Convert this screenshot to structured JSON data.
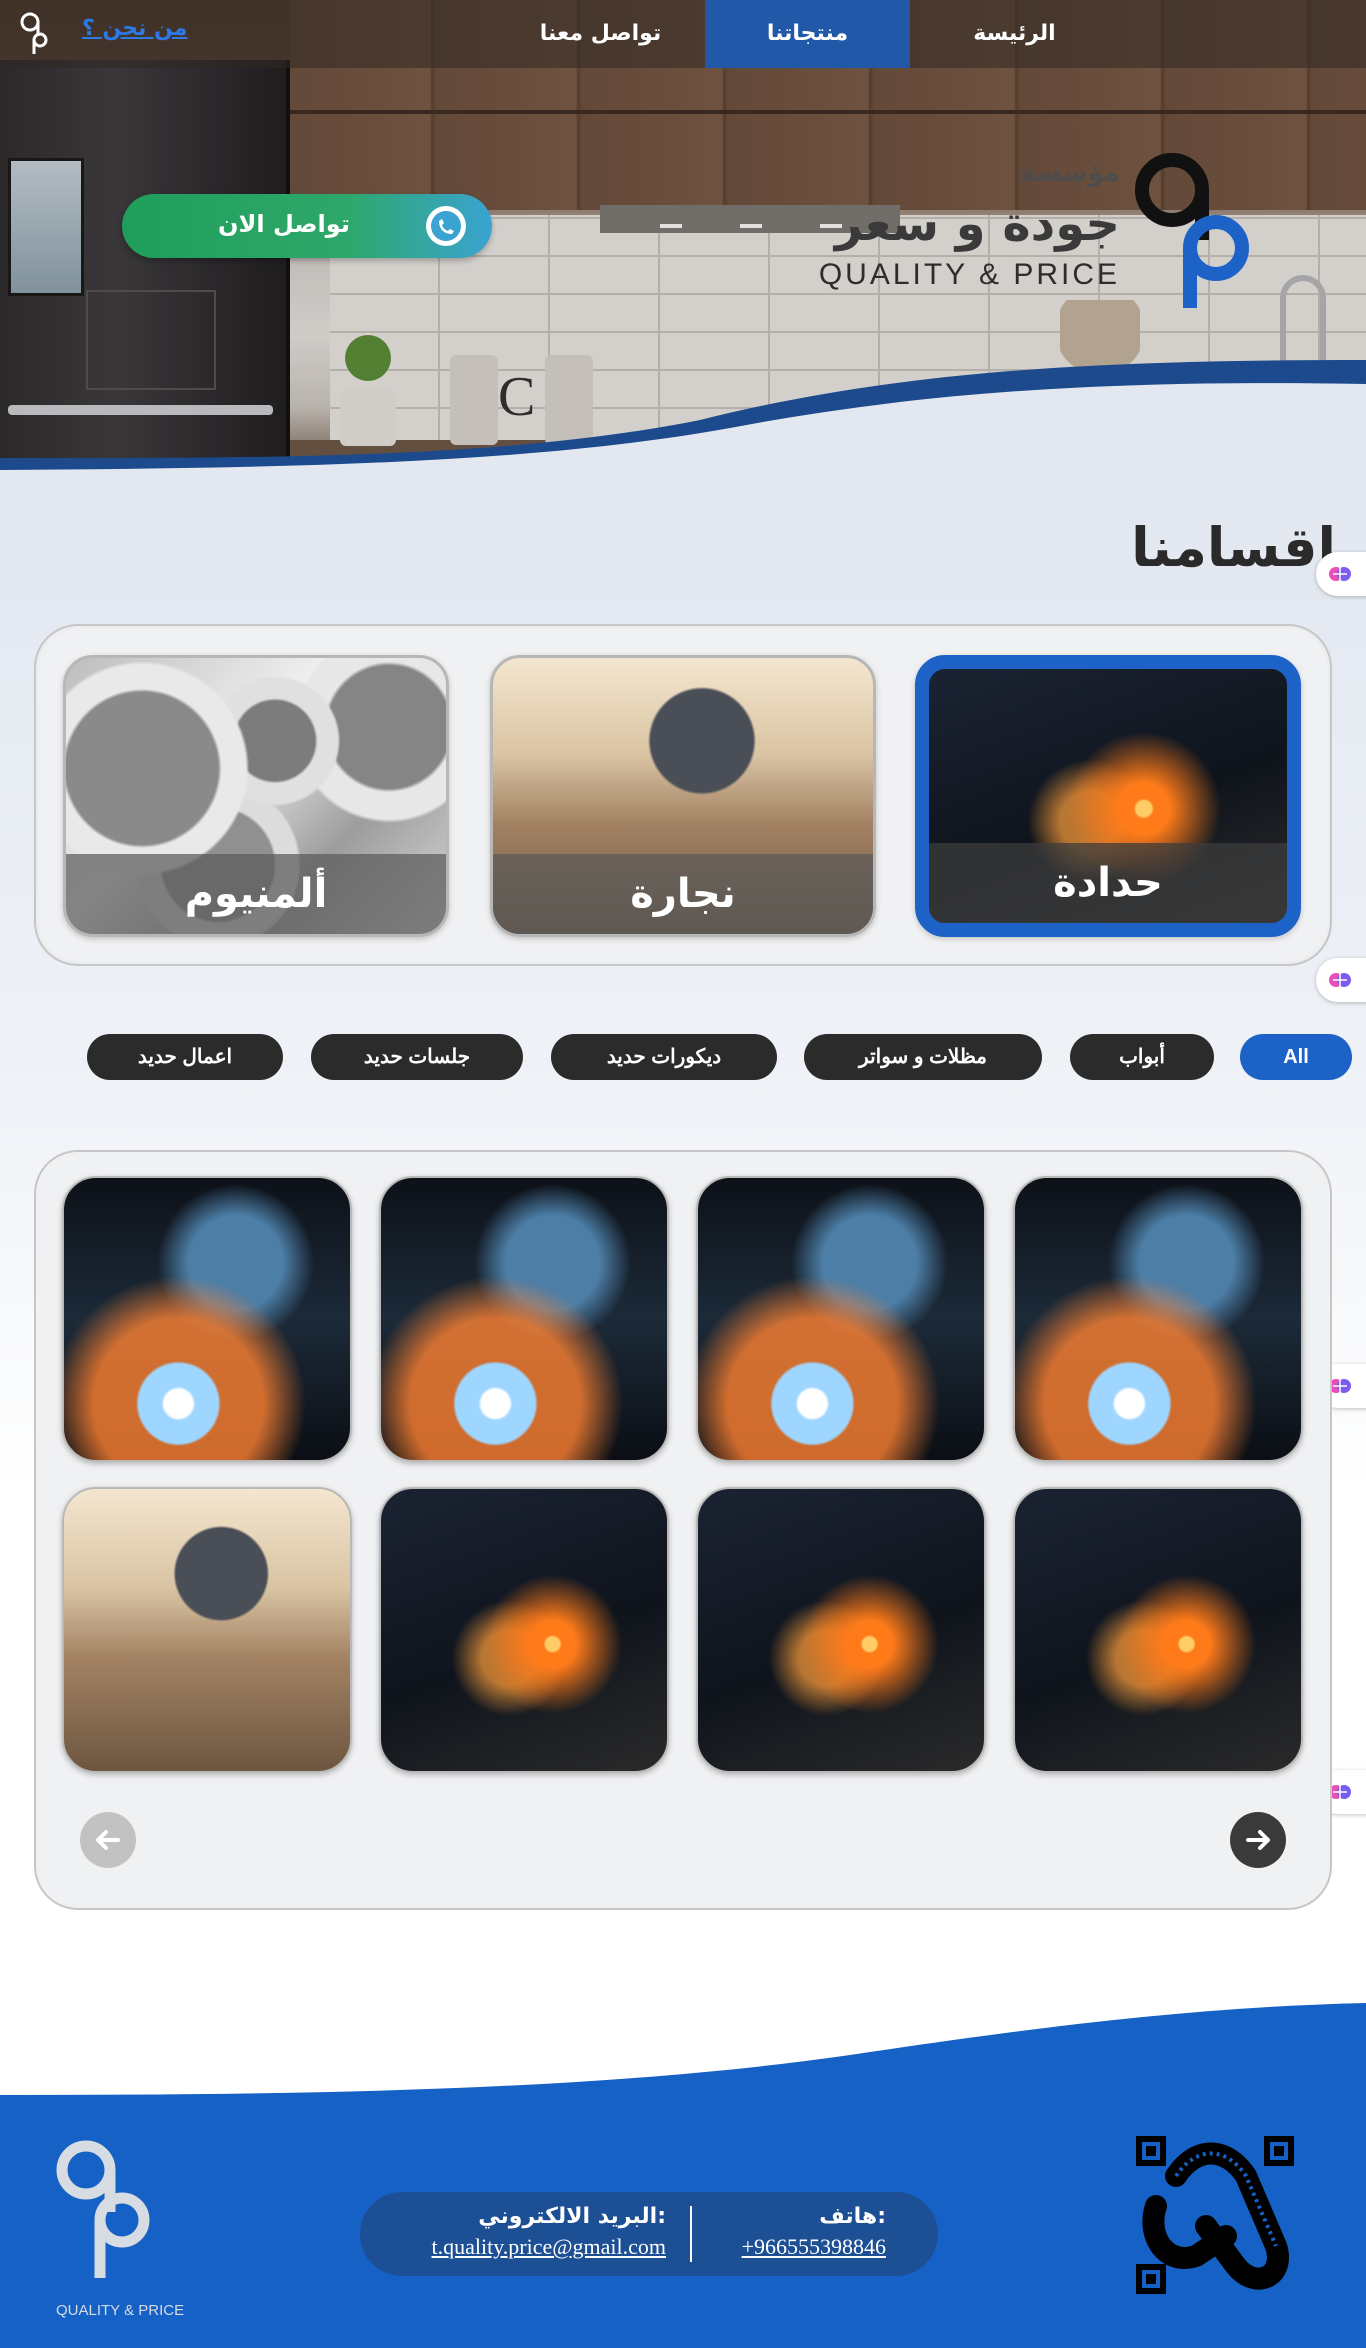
{
  "nav": {
    "home": "الرئيسة",
    "products": "منتجاتنا",
    "contact": "تواصل معنا",
    "about": "من نحن ؟"
  },
  "brand": {
    "small": "مؤسسة",
    "big": "جودة و سعر",
    "en": "QUALITY & PRICE"
  },
  "cta": {
    "label": "تواصل الان",
    "icon": "whatsapp-icon"
  },
  "sections": {
    "title": "اقسامنا"
  },
  "categories": [
    {
      "label": "حدادة",
      "active": true
    },
    {
      "label": "نجارة",
      "active": false
    },
    {
      "label": "ألمنيوم",
      "active": false
    }
  ],
  "filters": [
    {
      "label": "All",
      "active": true
    },
    {
      "label": "أبواب",
      "active": false
    },
    {
      "label": "مظلات و سواتر",
      "active": false
    },
    {
      "label": "ديكورات حديد",
      "active": false
    },
    {
      "label": "جلسات حديد",
      "active": false
    },
    {
      "label": "اعمال حديد",
      "active": false
    }
  ],
  "gallery": [
    "welding-photo",
    "welding-photo",
    "welding-photo",
    "welding-photo",
    "grinding-photo",
    "grinding-photo",
    "grinding-photo",
    "carpentry-photo"
  ],
  "footer": {
    "phone_label": "هاتف:",
    "phone": "+966555398846",
    "email_label": "البريد الالكتروني:",
    "email": "t.quality.price@gmail.com",
    "logo_text": "QUALITY & PRICE"
  },
  "colors": {
    "primary": "#1d62c6",
    "footer": "#1561c6",
    "dark": "#2b2b2b",
    "whatsapp": "#1f9d5a"
  }
}
